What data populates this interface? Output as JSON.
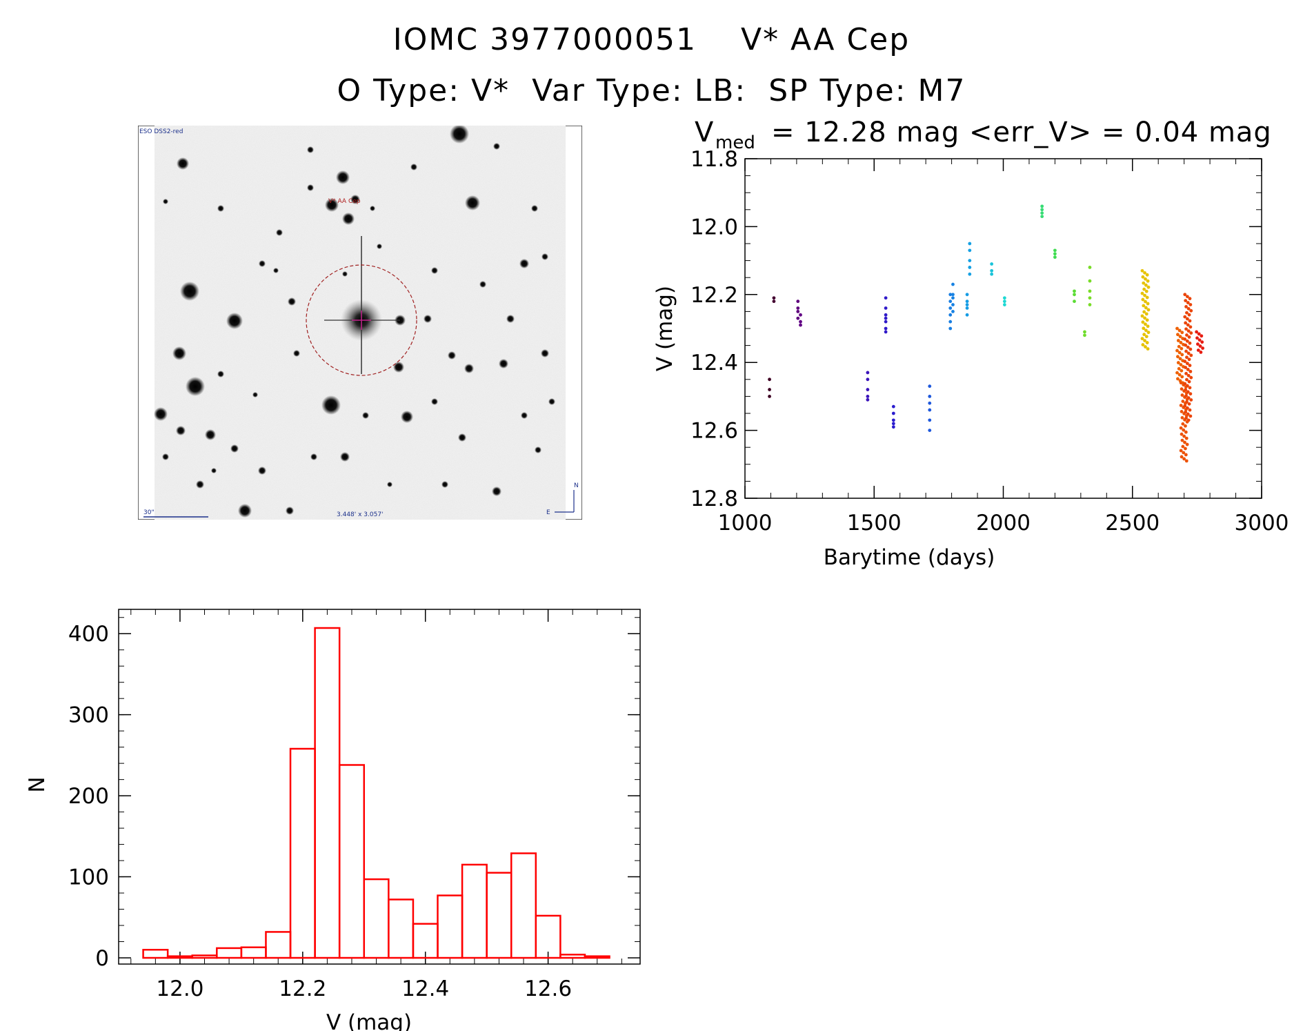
{
  "header": {
    "title_line1": "IOMC 3977000051    V* AA Cep",
    "title_line2": "O Type: V*  Var Type: LB:  SP Type: M7"
  },
  "finder_chart": {
    "survey_label": "ESO DSS2-red",
    "target_label": "V* AA Cep",
    "scale_label": "30\"",
    "fov_label": "3.448' x 3.057'",
    "north_label": "N",
    "east_label": "E"
  },
  "chart_data": [
    {
      "type": "scatter",
      "title_main": "V",
      "title_sub": "med",
      "title_rest": "= 12.28 mag <err_V> = 0.04 mag",
      "xlabel": "Barytime (days)",
      "ylabel": "V (mag)",
      "xlim": [
        1000,
        3000
      ],
      "ylim": [
        12.8,
        11.8
      ],
      "xticks": [
        "1000",
        "1500",
        "2000",
        "2500",
        "3000"
      ],
      "yticks": [
        "11.8",
        "12.0",
        "12.2",
        "12.4",
        "12.6",
        "12.8"
      ],
      "color_scale": "rainbow by time",
      "groups": [
        {
          "x": 1095,
          "y": [
            12.45,
            12.48,
            12.5
          ]
        },
        {
          "x": 1112,
          "y": [
            12.21,
            12.22
          ]
        },
        {
          "x": 1205,
          "y": [
            12.22,
            12.24,
            12.25,
            12.27
          ]
        },
        {
          "x": 1215,
          "y": [
            12.26,
            12.28,
            12.29
          ]
        },
        {
          "x": 1475,
          "y": [
            12.43,
            12.45,
            12.48,
            12.5,
            12.51
          ]
        },
        {
          "x": 1545,
          "y": [
            12.21,
            12.24,
            12.26,
            12.27,
            12.28,
            12.3,
            12.31
          ]
        },
        {
          "x": 1575,
          "y": [
            12.53,
            12.55,
            12.57,
            12.58,
            12.59
          ]
        },
        {
          "x": 1715,
          "y": [
            12.47,
            12.5,
            12.52,
            12.54,
            12.57,
            12.6
          ]
        },
        {
          "x": 1795,
          "y": [
            12.2,
            12.22,
            12.24,
            12.26,
            12.28,
            12.3
          ]
        },
        {
          "x": 1805,
          "y": [
            12.17,
            12.2,
            12.21,
            12.23,
            12.25
          ]
        },
        {
          "x": 1860,
          "y": [
            12.2,
            12.22,
            12.23,
            12.24,
            12.26
          ]
        },
        {
          "x": 1870,
          "y": [
            12.05,
            12.07,
            12.1,
            12.12,
            12.14
          ]
        },
        {
          "x": 1955,
          "y": [
            12.11,
            12.13,
            12.14
          ]
        },
        {
          "x": 2005,
          "y": [
            12.21,
            12.22,
            12.23
          ]
        },
        {
          "x": 2150,
          "y": [
            11.94,
            11.95,
            11.96,
            11.97
          ]
        },
        {
          "x": 2200,
          "y": [
            12.07,
            12.08,
            12.09
          ]
        },
        {
          "x": 2275,
          "y": [
            12.19,
            12.2,
            12.22
          ]
        },
        {
          "x": 2315,
          "y": [
            12.31,
            12.32
          ]
        },
        {
          "x": 2335,
          "y": [
            12.12,
            12.16,
            12.19,
            12.21,
            12.23
          ]
        },
        {
          "x": 2550,
          "y_range": [
            12.13,
            12.36
          ]
        },
        {
          "x": 2685,
          "y_range": [
            12.3,
            12.46
          ]
        },
        {
          "x": 2700,
          "y_range": [
            12.46,
            12.69
          ]
        },
        {
          "x": 2715,
          "y_range": [
            12.2,
            12.57
          ]
        },
        {
          "x": 2760,
          "y_range": [
            12.31,
            12.37
          ]
        }
      ]
    },
    {
      "type": "bar",
      "style": "histogram-outline",
      "color": "#ff0000",
      "xlabel": "V (mag)",
      "ylabel": "N",
      "xlim": [
        11.9,
        12.75
      ],
      "ylim": [
        0,
        430
      ],
      "xticks": [
        "12.0",
        "12.2",
        "12.4",
        "12.6"
      ],
      "yticks": [
        "0",
        "100",
        "200",
        "300",
        "400"
      ],
      "bin_width": 0.04,
      "bin_lefts": [
        11.94,
        11.98,
        12.02,
        12.06,
        12.1,
        12.14,
        12.18,
        12.22,
        12.26,
        12.3,
        12.34,
        12.38,
        12.42,
        12.46,
        12.5,
        12.54,
        12.58,
        12.62,
        12.66
      ],
      "values": [
        10,
        2,
        3,
        12,
        13,
        32,
        258,
        407,
        238,
        97,
        72,
        42,
        77,
        115,
        105,
        129,
        52,
        4,
        2
      ]
    }
  ]
}
